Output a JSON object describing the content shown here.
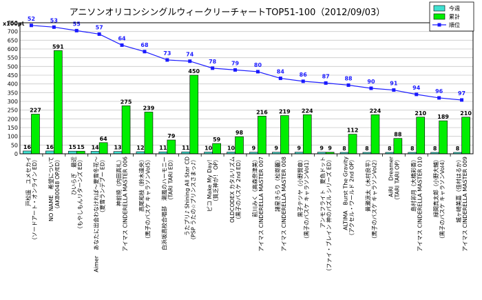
{
  "chart_data": {
    "type": "bar",
    "title": "アニソンオリコンシングルウィークリーチャートTOP51-100（2012/09/03）",
    "y_unit": "x100pt",
    "ylim": [
      0,
      750
    ],
    "yticks": [
      0,
      50,
      100,
      150,
      200,
      250,
      300,
      350,
      400,
      450,
      500,
      550,
      600,
      650,
      700,
      750
    ],
    "grid": true,
    "legend_position": "top-right",
    "colors": {
      "this_week": "#40e0d0",
      "cumulative": "#00ee00",
      "rank": "#1a1aff",
      "border": "#000000"
    },
    "categories": [
      [
        "戸松遥　ユメセカイ",
        "（ソードアート・オンライン ED）"
      ],
      [
        "NO NAME　希望について",
        "（AKB0048 OP/ED）"
      ],
      [
        "ひいらぎ　最近",
        "（もやしもんリターンズ ED）"
      ],
      [
        "Aimer　あなたに出会わなければ～夏雪冬花～",
        "（夏雪ランデブー ED）"
      ],
      [
        "神前暁（内田真礼）",
        "アイマス CINDERELLA MASTER 006"
      ],
      [
        "高尾和枝（鈴木達央）",
        "（黒子のバスケ キャラソンVol5）"
      ],
      [
        "白浜坂高校合唱部　潮風のハーモニー",
        "（TARI TARI ED）"
      ],
      [
        "うたプリ♪ Shining All Star CD",
        "（PSP うたの☆プリンスさまっ♪）"
      ],
      [
        "ピコ Make My Day！",
        "（貧乏神が！ OP）"
      ],
      [
        "OLDCODEX カタルリズム",
        "（黒子のバスケ 2nd ED）"
      ],
      [
        "前川みく（高森奈津美）",
        "アイマス CINDERELLA MASTER 007"
      ],
      [
        "諸星きらり（松嵜麗）",
        "アイマス CINDERELLA MASTER 008"
      ],
      [
        "黒子テツヤ（小野賢章）",
        "（黒子のバスケ キャラソンVol1）"
      ],
      [
        "アンモフライト　夏色ドット",
        "（ファイ・ブレイン 神のパズル シリーズ ED）"
      ],
      [
        "ALTIMA　Burst The Gravity",
        "（アクセル・ワールド 2nd OP）"
      ],
      [
        "黄瀬涼太（木村良平）",
        "（黒子のバスケ キャラソンVol2）"
      ],
      [
        "AiRI　Dreamer",
        "（TARI TARI OP）"
      ],
      [
        "島村卯月（大橋彩香）",
        "アイマス CINDERELLA MASTER 010"
      ],
      [
        "緑間真太郎（小野大輔）",
        "（黒子のバスケ キャラソンVol4）"
      ],
      [
        "城ヶ崎美嘉（佳村はるか）",
        "アイマス CINDERELLA MASTER 009"
      ]
    ],
    "series": [
      {
        "name": "今週",
        "values": [
          16,
          16,
          15,
          14,
          13,
          12,
          11,
          11,
          10,
          10,
          9,
          9,
          9,
          9,
          8,
          8,
          8,
          8,
          8,
          8
        ]
      },
      {
        "name": "累計",
        "values": [
          227,
          591,
          15,
          64,
          275,
          239,
          79,
          450,
          59,
          98,
          216,
          219,
          224,
          9,
          112,
          224,
          88,
          210,
          189,
          210
        ]
      },
      {
        "name": "順位",
        "values": [
          52,
          53,
          55,
          57,
          64,
          68,
          73,
          74,
          78,
          79,
          80,
          84,
          86,
          87,
          88,
          90,
          91,
          94,
          96,
          97
        ],
        "plotted_on_y": [
          735,
          725,
          705,
          685,
          622,
          585,
          537,
          530,
          490,
          480,
          470,
          432,
          415,
          405,
          393,
          375,
          365,
          340,
          320,
          308
        ]
      }
    ],
    "bar_value_labels": [
      16,
      227,
      16,
      591,
      15,
      14,
      64,
      13,
      275,
      12,
      239,
      11,
      79,
      11,
      450,
      10,
      59,
      10,
      98,
      9,
      216,
      9,
      219,
      9,
      224,
      9,
      112,
      8,
      224,
      8,
      88,
      8,
      210,
      8,
      189,
      8,
      210
    ]
  }
}
